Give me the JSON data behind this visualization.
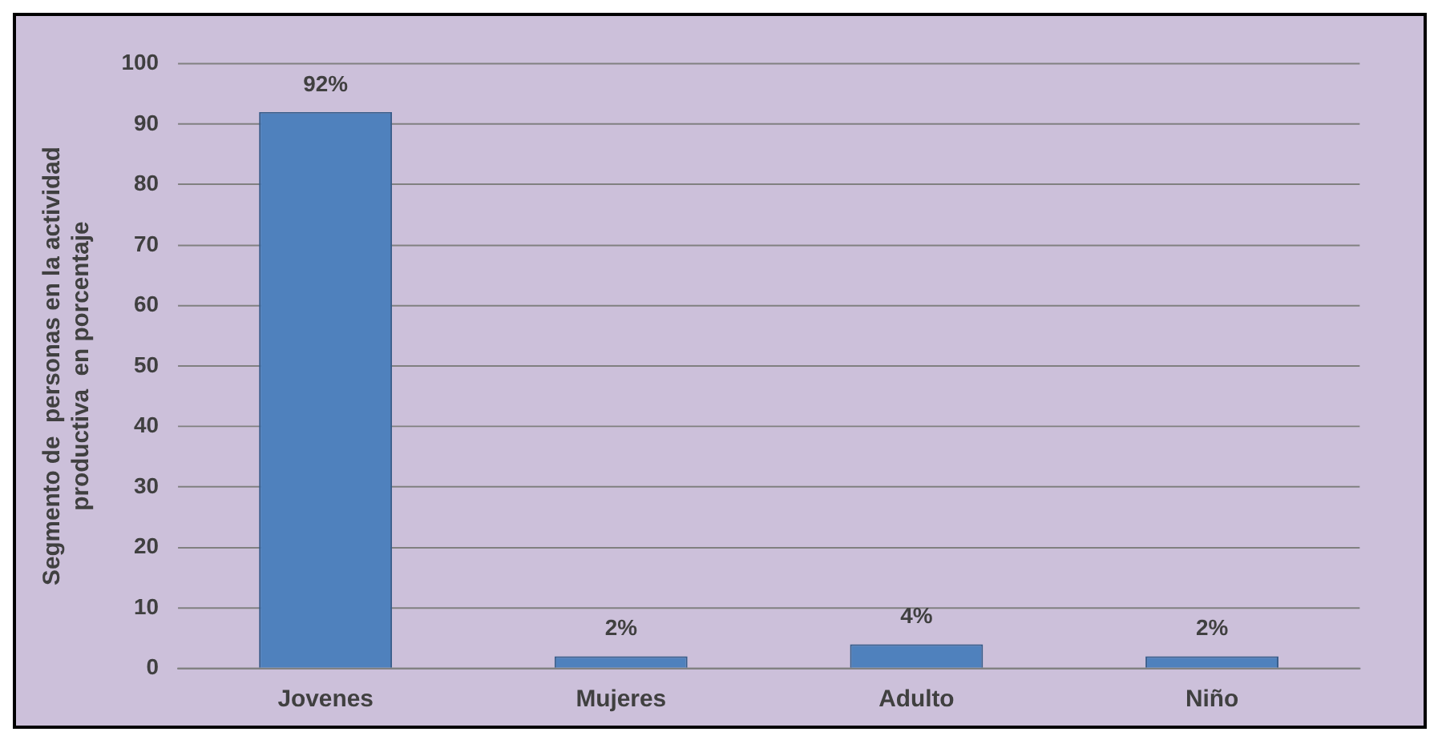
{
  "chart_data": {
    "type": "bar",
    "ylabel": "Segmento de  personas en la actividad\nproductiva  en porcentaje",
    "categories": [
      "Jovenes",
      "Mujeres",
      "Adulto",
      "Niño"
    ],
    "values": [
      92,
      2,
      4,
      2
    ],
    "value_labels": [
      "92%",
      "2%",
      "4%",
      "2%"
    ],
    "color": "#4f81bd",
    "ylim": [
      0,
      100
    ],
    "yticks": [
      0,
      10,
      20,
      30,
      40,
      50,
      60,
      70,
      80,
      90,
      100
    ],
    "grid": "y",
    "legend": false
  }
}
